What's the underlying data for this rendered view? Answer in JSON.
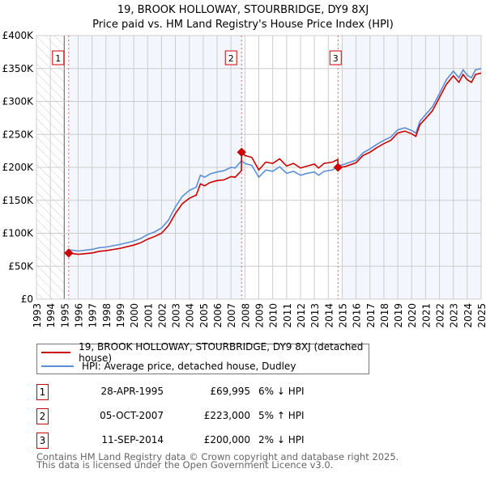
{
  "chart_data": {
    "type": "line",
    "title": "19, BROOK HOLLOWAY, STOURBRIDGE, DY9 8XJ",
    "subtitle": "Price paid vs. HM Land Registry's House Price Index (HPI)",
    "xlim": [
      1993,
      2025
    ],
    "ylim": [
      0,
      400000
    ],
    "y_ticks": [
      {
        "v": 0,
        "label": "£0"
      },
      {
        "v": 50000,
        "label": "£50K"
      },
      {
        "v": 100000,
        "label": "£100K"
      },
      {
        "v": 150000,
        "label": "£150K"
      },
      {
        "v": 200000,
        "label": "£200K"
      },
      {
        "v": 250000,
        "label": "£250K"
      },
      {
        "v": 300000,
        "label": "£300K"
      },
      {
        "v": 350000,
        "label": "£350K"
      },
      {
        "v": 400000,
        "label": "£400K"
      }
    ],
    "x_ticks": [
      "1993",
      "1994",
      "1995",
      "1996",
      "1997",
      "1998",
      "1999",
      "2000",
      "2001",
      "2002",
      "2003",
      "2004",
      "2005",
      "2006",
      "2007",
      "2008",
      "2009",
      "2010",
      "2011",
      "2012",
      "2013",
      "2014",
      "2015",
      "2016",
      "2017",
      "2018",
      "2019",
      "2020",
      "2021",
      "2022",
      "2023",
      "2024",
      "2025"
    ],
    "grid": true,
    "series": [
      {
        "name": "19, BROOK HOLLOWAY, STOURBRIDGE, DY9 8XJ (detached house)",
        "color": "#cc0000",
        "points": [
          [
            1995.32,
            70
          ],
          [
            1996,
            68
          ],
          [
            1997,
            70
          ],
          [
            1997.5,
            72.5
          ],
          [
            1998,
            73.5
          ],
          [
            1999,
            77
          ],
          [
            2000,
            82
          ],
          [
            2000.5,
            85.5
          ],
          [
            2001,
            91
          ],
          [
            2001.5,
            95
          ],
          [
            2002,
            100
          ],
          [
            2002.5,
            111.6
          ],
          [
            2003,
            130
          ],
          [
            2003.5,
            145
          ],
          [
            2004,
            153
          ],
          [
            2004.5,
            158
          ],
          [
            2004.8,
            175
          ],
          [
            2005.1,
            172
          ],
          [
            2005.5,
            177
          ],
          [
            2006,
            180
          ],
          [
            2006.5,
            181
          ],
          [
            2007,
            186
          ],
          [
            2007.3,
            185
          ],
          [
            2007.75,
            195
          ],
          [
            2007.76,
            223
          ],
          [
            2008,
            218
          ],
          [
            2008.5,
            215
          ],
          [
            2009,
            196
          ],
          [
            2009.5,
            208
          ],
          [
            2010,
            206
          ],
          [
            2010.5,
            213
          ],
          [
            2011,
            202
          ],
          [
            2011.5,
            206
          ],
          [
            2012,
            199
          ],
          [
            2012.5,
            202
          ],
          [
            2013,
            205
          ],
          [
            2013.3,
            199
          ],
          [
            2013.7,
            206
          ],
          [
            2014.3,
            208
          ],
          [
            2014.69,
            212
          ],
          [
            2014.7,
            200
          ],
          [
            2015.2,
            201
          ],
          [
            2016,
            207
          ],
          [
            2016.5,
            218
          ],
          [
            2017,
            223
          ],
          [
            2017.5,
            230
          ],
          [
            2018,
            236
          ],
          [
            2018.5,
            241
          ],
          [
            2019,
            252
          ],
          [
            2019.5,
            255
          ],
          [
            2020,
            251
          ],
          [
            2020.3,
            247
          ],
          [
            2020.6,
            265
          ],
          [
            2021,
            274
          ],
          [
            2021.5,
            286
          ],
          [
            2022,
            306
          ],
          [
            2022.5,
            326
          ],
          [
            2023,
            339
          ],
          [
            2023.4,
            329
          ],
          [
            2023.7,
            341
          ],
          [
            2024,
            333
          ],
          [
            2024.3,
            329
          ],
          [
            2024.6,
            341
          ],
          [
            2025,
            343
          ]
        ]
      },
      {
        "name": "HPI: Average price, detached house, Dudley",
        "color": "#5b8fd6",
        "points": [
          [
            1995.3,
            75
          ],
          [
            1996,
            73
          ],
          [
            1997,
            75.5
          ],
          [
            1997.5,
            78
          ],
          [
            1998,
            79
          ],
          [
            1999,
            83
          ],
          [
            2000,
            88
          ],
          [
            2000.5,
            92
          ],
          [
            2001,
            98
          ],
          [
            2001.5,
            102
          ],
          [
            2002,
            108
          ],
          [
            2002.5,
            120
          ],
          [
            2003,
            140
          ],
          [
            2003.5,
            156
          ],
          [
            2004,
            165
          ],
          [
            2004.5,
            170
          ],
          [
            2004.8,
            188
          ],
          [
            2005.1,
            185
          ],
          [
            2005.5,
            190
          ],
          [
            2006,
            193
          ],
          [
            2006.5,
            195
          ],
          [
            2007,
            200
          ],
          [
            2007.3,
            199
          ],
          [
            2007.76,
            210
          ],
          [
            2008,
            206
          ],
          [
            2008.5,
            203
          ],
          [
            2009,
            185
          ],
          [
            2009.5,
            196
          ],
          [
            2010,
            194
          ],
          [
            2010.5,
            201
          ],
          [
            2011,
            191
          ],
          [
            2011.5,
            194
          ],
          [
            2012,
            188
          ],
          [
            2012.5,
            191
          ],
          [
            2013,
            193
          ],
          [
            2013.3,
            188
          ],
          [
            2013.7,
            194
          ],
          [
            2014.3,
            196
          ],
          [
            2014.7,
            202
          ],
          [
            2015.2,
            205
          ],
          [
            2016,
            211
          ],
          [
            2016.5,
            222
          ],
          [
            2017,
            228
          ],
          [
            2017.5,
            235
          ],
          [
            2018,
            241
          ],
          [
            2018.5,
            246
          ],
          [
            2019,
            257
          ],
          [
            2019.5,
            260
          ],
          [
            2020,
            256
          ],
          [
            2020.3,
            252
          ],
          [
            2020.6,
            270
          ],
          [
            2021,
            280
          ],
          [
            2021.5,
            292
          ],
          [
            2022,
            312
          ],
          [
            2022.5,
            333
          ],
          [
            2023,
            346
          ],
          [
            2023.4,
            336
          ],
          [
            2023.7,
            348
          ],
          [
            2024,
            340
          ],
          [
            2024.3,
            336
          ],
          [
            2024.6,
            348
          ],
          [
            2025,
            350
          ]
        ]
      }
    ],
    "sales": [
      {
        "label": "1",
        "x": 1995.32,
        "y": 69995
      },
      {
        "label": "2",
        "x": 2007.76,
        "y": 223000
      },
      {
        "label": "3",
        "x": 2014.7,
        "y": 200000
      }
    ]
  },
  "legend": {
    "property": "19, BROOK HOLLOWAY, STOURBRIDGE, DY9 8XJ (detached house)",
    "hpi": "HPI: Average price, detached house, Dudley"
  },
  "transactions": [
    {
      "num": "1",
      "date": "28-APR-1995",
      "price": "£69,995",
      "hpi": "6% ↓ HPI"
    },
    {
      "num": "2",
      "date": "05-OCT-2007",
      "price": "£223,000",
      "hpi": "5% ↑ HPI"
    },
    {
      "num": "3",
      "date": "11-SEP-2014",
      "price": "£200,000",
      "hpi": "2% ↓ HPI"
    }
  ],
  "footer": {
    "line1": "Contains HM Land Registry data © Crown copyright and database right 2025.",
    "line2": "This data is licensed under the Open Government Licence v3.0."
  }
}
